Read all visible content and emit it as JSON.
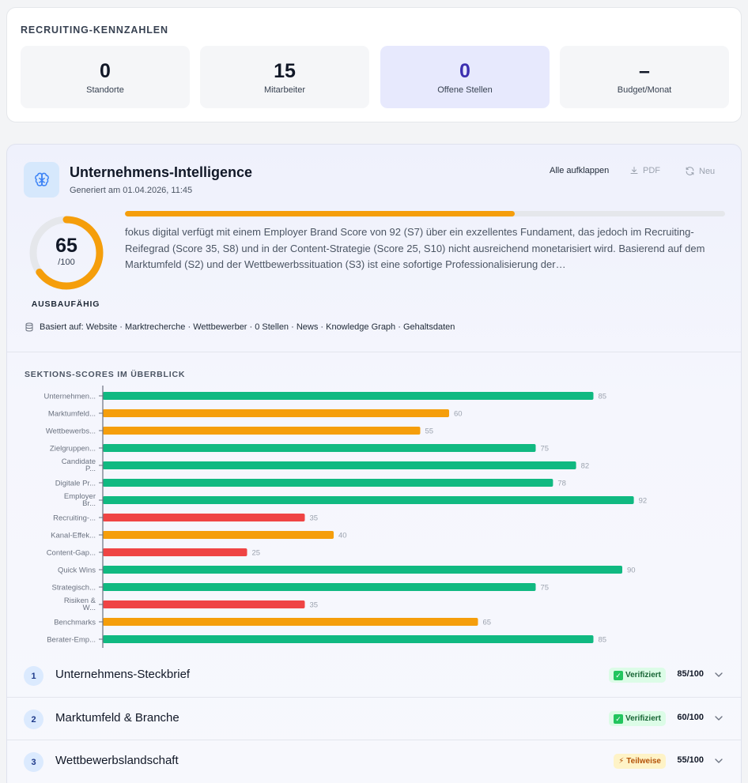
{
  "kpis": {
    "title": "RECRUITING-KENNZAHLEN",
    "items": [
      {
        "value": "0",
        "label": "Standorte"
      },
      {
        "value": "15",
        "label": "Mitarbeiter"
      },
      {
        "value": "0",
        "label": "Offene Stellen"
      },
      {
        "value": "–",
        "label": "Budget/Monat"
      }
    ]
  },
  "intel": {
    "title": "Unternehmens-Intelligence",
    "generated": "Generiert am 01.04.2026, 11:45",
    "expand_label": "Alle aufklappen",
    "pdf_label": "PDF",
    "refresh_label": "Neu",
    "icons": {
      "header": "brain-icon",
      "pdf": "download-icon",
      "refresh": "refresh-icon",
      "database": "database-icon",
      "chevron": "chevron-down-icon"
    },
    "score": "65",
    "score_max": "/100",
    "score_value": 65,
    "score_status": "AUSBAUFÄHIG",
    "progress_fraction": 0.65,
    "summary": "fokus digital verfügt mit einem Employer Brand Score von 92 (S7) über ein exzellentes Fundament, das jedoch im Recruiting-Reifegrad (Score 35, S8) und in der Content-Strategie (Score 25, S10) nicht ausreichend monetarisiert wird. Basierend auf dem Marktumfeld (S2) und der Wettbewerbssituation (S3) ist eine sofortige Professionalisierung der…",
    "based_on": "Basiert auf: Website · Marktrecherche · Wettbewerber · 0 Stellen · News · Knowledge Graph · Gehaltsdaten",
    "colors": {
      "accent": "#f59e0b",
      "good": "#10b981",
      "medium": "#f59e0b",
      "bad": "#ef4444"
    }
  },
  "chart_title": "SEKTIONS-SCORES IM ÜBERBLICK",
  "chart_data": {
    "type": "bar",
    "orientation": "horizontal",
    "xlim": [
      0,
      100
    ],
    "categories": [
      [
        "Unternehmen..."
      ],
      [
        "Marktumfeld..."
      ],
      [
        "Wettbewerbs..."
      ],
      [
        "Zielgruppen..."
      ],
      [
        "Candidate",
        "P..."
      ],
      [
        "Digitale Pr..."
      ],
      [
        "Employer",
        "Br..."
      ],
      [
        "Recruiting-..."
      ],
      [
        "Kanal-Effek..."
      ],
      [
        "Content-Gap..."
      ],
      [
        "Quick Wins"
      ],
      [
        "Strategisch..."
      ],
      [
        "Risiken &",
        "W..."
      ],
      [
        "Benchmarks"
      ],
      [
        "Berater-Emp..."
      ]
    ],
    "values": [
      85,
      60,
      55,
      75,
      82,
      78,
      92,
      35,
      40,
      25,
      90,
      75,
      35,
      65,
      85
    ],
    "colors": [
      "#10b981",
      "#f59e0b",
      "#f59e0b",
      "#10b981",
      "#10b981",
      "#10b981",
      "#10b981",
      "#ef4444",
      "#f59e0b",
      "#ef4444",
      "#10b981",
      "#10b981",
      "#ef4444",
      "#f59e0b",
      "#10b981"
    ]
  },
  "sections": [
    {
      "num": "1",
      "name": "Unternehmens-Steckbrief",
      "badge": "Verifiziert",
      "score": "85/100"
    },
    {
      "num": "2",
      "name": "Marktumfeld & Branche",
      "badge": "Verifiziert",
      "score": "60/100"
    },
    {
      "num": "3",
      "name": "Wettbewerbslandschaft",
      "badge": "Teilweise",
      "score": "55/100"
    }
  ]
}
